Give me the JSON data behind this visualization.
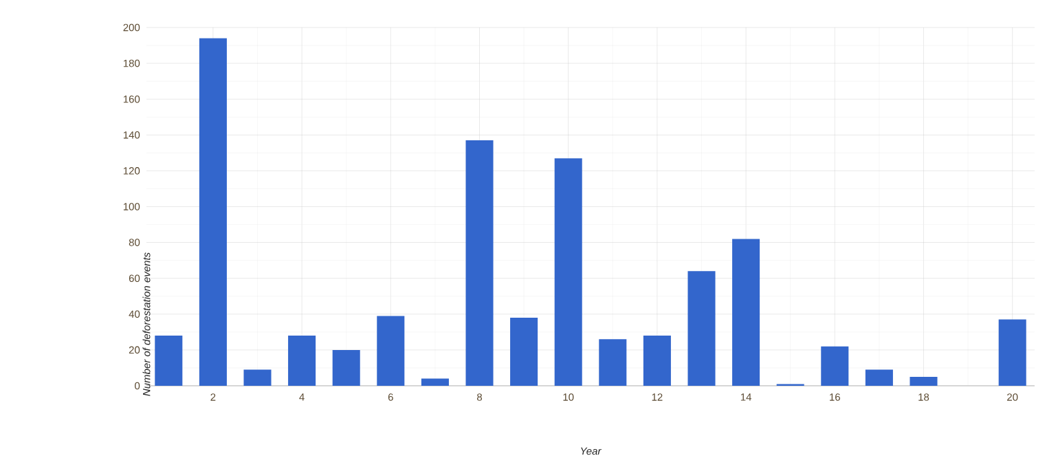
{
  "chart_data": {
    "type": "bar",
    "xlabel": "Year",
    "ylabel": "Number of deforestation events",
    "x": [
      1,
      2,
      3,
      4,
      5,
      6,
      7,
      8,
      9,
      10,
      11,
      12,
      13,
      14,
      15,
      16,
      17,
      18,
      19,
      20
    ],
    "values": [
      28,
      194,
      9,
      28,
      20,
      39,
      4,
      137,
      38,
      127,
      26,
      28,
      64,
      82,
      1,
      22,
      9,
      5,
      0,
      37
    ],
    "color": "#3366cc",
    "xlim": [
      0.5,
      20.5
    ],
    "ylim": [
      0,
      200
    ],
    "xticks": [
      2,
      4,
      6,
      8,
      10,
      12,
      14,
      16,
      18,
      20
    ],
    "yticks": [
      0,
      20,
      40,
      60,
      80,
      100,
      120,
      140,
      160,
      180,
      200
    ],
    "grid": true
  }
}
